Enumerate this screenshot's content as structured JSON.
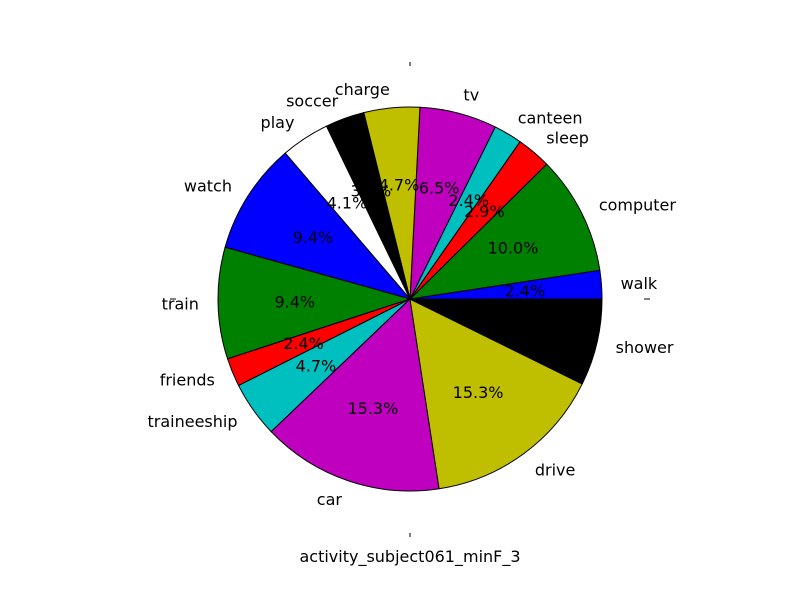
{
  "chart_data": {
    "type": "pie",
    "xlabel": "activity_subject061_minF_3",
    "categories": [
      "walk",
      "computer",
      "sleep",
      "canteen",
      "tv",
      "charge",
      "soccer",
      "play",
      "watch",
      "train",
      "friends",
      "traineeship",
      "car",
      "drive",
      "shower"
    ],
    "values": [
      2.4,
      10.0,
      2.9,
      2.4,
      6.5,
      4.7,
      3.3,
      4.1,
      9.4,
      9.4,
      2.4,
      4.7,
      15.3,
      15.3,
      7.3
    ],
    "pct_labels": [
      "2.4%",
      "10.0%",
      "2.9%",
      "2.4%",
      "6.5%",
      "4.7%",
      "3.3%",
      "4.1%",
      "9.4%",
      "9.4%",
      "2.4%",
      "4.7%",
      "15.3%",
      "15.3%",
      "7.3%"
    ],
    "colors": [
      "#0000ff",
      "#008000",
      "#ff0000",
      "#00bfbf",
      "#bf00bf",
      "#bfbf00",
      "#000000",
      "#ffffff",
      "#0000ff",
      "#008000",
      "#ff0000",
      "#00bfbf",
      "#bf00bf",
      "#bfbf00",
      "#000000"
    ],
    "start_angle_deg": 0,
    "direction": "counterclockwise"
  }
}
